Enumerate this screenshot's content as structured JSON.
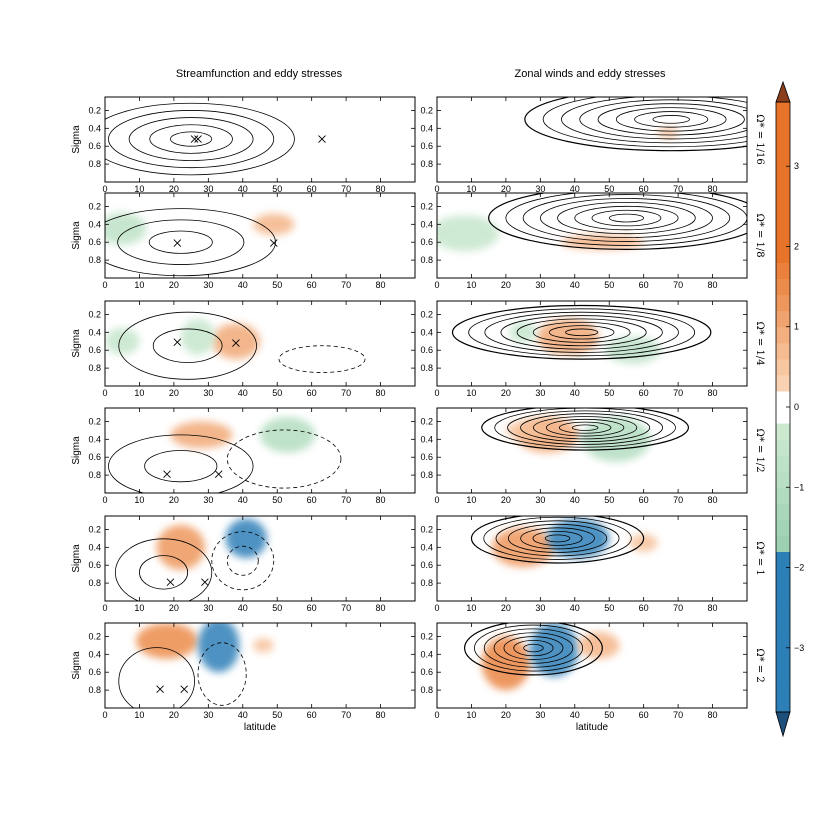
{
  "chart_data": {
    "type": "contour",
    "column_titles": [
      "Streamfunction and eddy stresses",
      "Zonal winds and eddy stresses"
    ],
    "row_labels": [
      "Ω* = 1/16",
      "Ω* = 1/8",
      "Ω* = 1/4",
      "Ω* = 1/2",
      "Ω* = 1",
      "Ω* = 2"
    ],
    "ylabel": "Sigma",
    "xlabel": "latitude",
    "xlim": [
      0,
      90
    ],
    "ylim": [
      1.0,
      0.05
    ],
    "xticks": [
      "0",
      "10",
      "20",
      "30",
      "40",
      "50",
      "60",
      "70",
      "80"
    ],
    "yticks": [
      "0.2",
      "0.4",
      "0.6",
      "0.8"
    ],
    "colorbar": {
      "ticks": [
        "3",
        "2",
        "1",
        "0",
        "−1",
        "−2",
        "−3"
      ],
      "range": [
        -3.8,
        3.8
      ],
      "extend": "both",
      "positive_color": "#e8742a",
      "negative_color": "#2d7fb8"
    },
    "panels": [
      {
        "row": 1,
        "col": 1,
        "markers": [
          [
            26,
            0.52
          ],
          [
            27,
            0.52
          ],
          [
            63,
            0.52
          ]
        ],
        "contours": [
          {
            "center": [
              25,
              0.52
            ],
            "width": 60,
            "depth": 0.8,
            "levels": 5,
            "style": "solid"
          }
        ]
      },
      {
        "row": 1,
        "col": 2,
        "contours": [
          {
            "center": [
              68,
              0.3
            ],
            "width": 85,
            "depth": 0.7,
            "levels": 8,
            "style": "solid"
          }
        ]
      },
      {
        "row": 2,
        "col": 1,
        "markers": [
          [
            21,
            0.61
          ],
          [
            49,
            0.61
          ]
        ],
        "contours": [
          {
            "center": [
              22,
              0.6
            ],
            "width": 55,
            "depth": 0.75,
            "levels": 3,
            "style": "solid"
          }
        ]
      },
      {
        "row": 2,
        "col": 2,
        "contours": [
          {
            "center": [
              55,
              0.33
            ],
            "width": 80,
            "depth": 0.7,
            "levels": 8,
            "style": "solid"
          }
        ]
      },
      {
        "row": 3,
        "col": 1,
        "markers": [
          [
            21,
            0.51
          ],
          [
            38,
            0.52
          ]
        ],
        "contours": [
          {
            "center": [
              24,
              0.55
            ],
            "width": 40,
            "depth": 0.75,
            "levels": 2,
            "style": "solid"
          },
          {
            "center": [
              63,
              0.7
            ],
            "width": 25,
            "depth": 0.3,
            "levels": 1,
            "style": "dashed"
          }
        ]
      },
      {
        "row": 3,
        "col": 2,
        "contours": [
          {
            "center": [
              42,
              0.4
            ],
            "width": 75,
            "depth": 0.6,
            "levels": 8,
            "style": "solid"
          }
        ]
      },
      {
        "row": 4,
        "col": 1,
        "markers": [
          [
            18,
            0.79
          ],
          [
            33,
            0.79
          ]
        ],
        "contours": [
          {
            "center": [
              22,
              0.7
            ],
            "width": 42,
            "depth": 0.7,
            "levels": 2,
            "style": "solid"
          },
          {
            "center": [
              52,
              0.62
            ],
            "width": 33,
            "depth": 0.65,
            "levels": 1,
            "style": "dashed"
          }
        ]
      },
      {
        "row": 4,
        "col": 2,
        "contours": [
          {
            "center": [
              43,
              0.27
            ],
            "width": 60,
            "depth": 0.5,
            "levels": 8,
            "style": "solid"
          }
        ]
      },
      {
        "row": 5,
        "col": 1,
        "markers": [
          [
            19,
            0.79
          ],
          [
            29,
            0.79
          ]
        ],
        "contours": [
          {
            "center": [
              17,
              0.68
            ],
            "width": 28,
            "depth": 0.75,
            "levels": 2,
            "style": "solid"
          },
          {
            "center": [
              40,
              0.55
            ],
            "width": 18,
            "depth": 0.65,
            "levels": 2,
            "style": "dashed"
          }
        ]
      },
      {
        "row": 5,
        "col": 2,
        "contours": [
          {
            "center": [
              35,
              0.3
            ],
            "width": 50,
            "depth": 0.55,
            "levels": 7,
            "style": "solid"
          }
        ]
      },
      {
        "row": 6,
        "col": 1,
        "markers": [
          [
            16,
            0.79
          ],
          [
            23,
            0.79
          ]
        ],
        "contours": [
          {
            "center": [
              15,
              0.7
            ],
            "width": 22,
            "depth": 0.75,
            "levels": 1,
            "style": "solid"
          },
          {
            "center": [
              34,
              0.62
            ],
            "width": 14,
            "depth": 0.7,
            "levels": 1,
            "style": "dashed"
          }
        ]
      },
      {
        "row": 6,
        "col": 2,
        "contours": [
          {
            "center": [
              28,
              0.33
            ],
            "width": 40,
            "depth": 0.6,
            "levels": 7,
            "style": "solid"
          }
        ]
      }
    ],
    "shading": [
      {
        "row": 1,
        "col": 2,
        "blobs": [
          [
            67,
            0.45,
            3,
            0.06,
            0.6
          ]
        ]
      },
      {
        "row": 2,
        "col": 1,
        "blobs": [
          [
            49,
            0.4,
            6,
            0.12,
            0.8
          ],
          [
            5,
            0.45,
            7,
            0.18,
            -0.7
          ]
        ]
      },
      {
        "row": 2,
        "col": 2,
        "blobs": [
          [
            48,
            0.6,
            12,
            0.08,
            0.9
          ],
          [
            8,
            0.5,
            10,
            0.2,
            -0.5
          ]
        ]
      },
      {
        "row": 3,
        "col": 1,
        "blobs": [
          [
            38,
            0.5,
            7,
            0.2,
            1.0
          ],
          [
            5,
            0.5,
            5,
            0.15,
            -0.5
          ],
          [
            27,
            0.45,
            5,
            0.2,
            -0.5
          ]
        ]
      },
      {
        "row": 3,
        "col": 2,
        "blobs": [
          [
            38,
            0.45,
            9,
            0.2,
            1.0
          ],
          [
            57,
            0.6,
            8,
            0.15,
            -0.7
          ],
          [
            25,
            0.4,
            4,
            0.12,
            -0.5
          ]
        ]
      },
      {
        "row": 4,
        "col": 1,
        "blobs": [
          [
            28,
            0.35,
            9,
            0.15,
            1.0
          ],
          [
            53,
            0.35,
            8,
            0.2,
            -1.0
          ]
        ]
      },
      {
        "row": 4,
        "col": 2,
        "blobs": [
          [
            32,
            0.35,
            9,
            0.2,
            1.0
          ],
          [
            52,
            0.4,
            10,
            0.25,
            -1.0
          ],
          [
            26,
            0.3,
            6,
            0.1,
            0.6
          ]
        ]
      },
      {
        "row": 5,
        "col": 1,
        "blobs": [
          [
            22,
            0.4,
            7,
            0.25,
            1.3
          ],
          [
            41,
            0.3,
            6,
            0.22,
            -2.0
          ]
        ]
      },
      {
        "row": 5,
        "col": 2,
        "blobs": [
          [
            25,
            0.4,
            9,
            0.22,
            1.3
          ],
          [
            41,
            0.3,
            9,
            0.22,
            -2.3
          ],
          [
            60,
            0.35,
            4,
            0.1,
            0.6
          ]
        ]
      },
      {
        "row": 6,
        "col": 1,
        "blobs": [
          [
            18,
            0.25,
            9,
            0.2,
            1.5
          ],
          [
            33,
            0.3,
            6,
            0.3,
            -2.5
          ],
          [
            46,
            0.3,
            3,
            0.08,
            0.6
          ]
        ]
      },
      {
        "row": 6,
        "col": 2,
        "blobs": [
          [
            20,
            0.5,
            7,
            0.3,
            1.6
          ],
          [
            34,
            0.35,
            7,
            0.3,
            -2.8
          ],
          [
            47,
            0.3,
            6,
            0.15,
            0.8
          ]
        ]
      }
    ]
  }
}
